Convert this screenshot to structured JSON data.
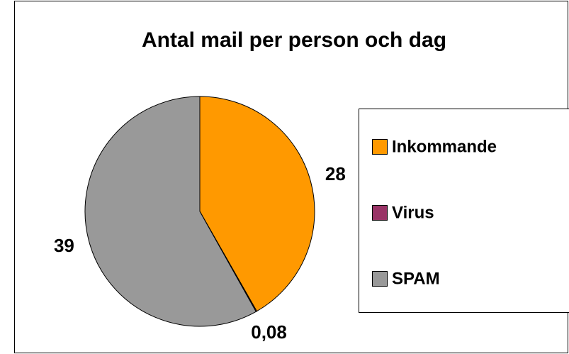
{
  "chart_data": {
    "type": "pie",
    "title": "Antal mail per person och dag",
    "categories": [
      "Inkommande",
      "Virus",
      "SPAM"
    ],
    "values": [
      28,
      0.08,
      39
    ],
    "value_labels": [
      "28",
      "0,08",
      "39"
    ],
    "colors": [
      "#ff9900",
      "#993366",
      "#999999"
    ],
    "legend": "right"
  }
}
